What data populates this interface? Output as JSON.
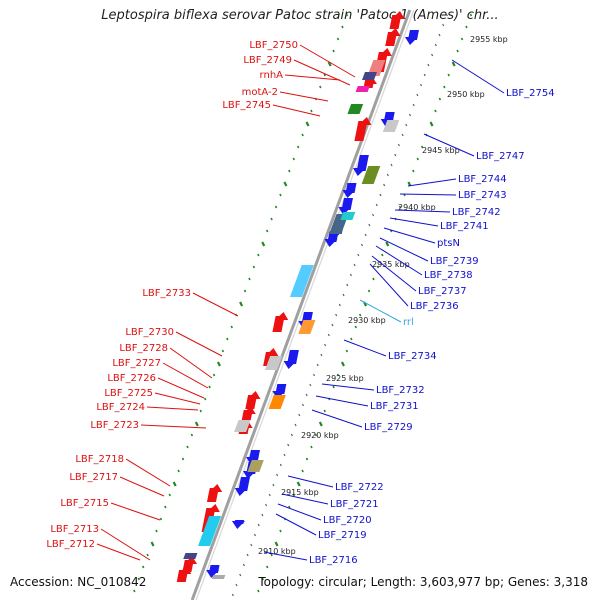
{
  "title": "Leptospira biflexa serovar Patoc strain 'Patoc 1 (Ames)' chr...",
  "footer": {
    "accession": "Accession: NC_010842",
    "topology": "Topology: circular; Length: 3,603,977 bp; Genes: 3,318"
  },
  "colors": {
    "backbone": "#a0a0a0",
    "forward_gene": "#ee1111",
    "reverse_gene": "#1a1aee",
    "left_label": "#dd1111",
    "right_label": "#1111cc",
    "rna_label": "#33aadd",
    "tick_green": "#228822"
  },
  "kbp_ticks": [
    "2955 kbp",
    "2950 kbp",
    "2945 kbp",
    "2940 kbp",
    "2935 kbp",
    "2930 kbp",
    "2925 kbp",
    "2920 kbp",
    "2915 kbp",
    "2910 kbp"
  ],
  "left_labels": [
    "LBF_2750",
    "LBF_2749",
    "rnhA",
    "motA-2",
    "LBF_2745",
    "LBF_2733",
    "LBF_2730",
    "LBF_2728",
    "LBF_2727",
    "LBF_2726",
    "LBF_2725",
    "LBF_2724",
    "LBF_2723",
    "LBF_2718",
    "LBF_2717",
    "LBF_2715",
    "LBF_2713",
    "LBF_2712"
  ],
  "right_labels": [
    "LBF_2754",
    "LBF_2747",
    "LBF_2744",
    "LBF_2743",
    "LBF_2742",
    "LBF_2741",
    "ptsN",
    "LBF_2739",
    "LBF_2738",
    "LBF_2737",
    "LBF_2736",
    "rrl",
    "LBF_2734",
    "LBF_2732",
    "LBF_2731",
    "LBF_2729",
    "LBF_2722",
    "LBF_2721",
    "LBF_2720",
    "LBF_2719",
    "LBF_2716"
  ]
}
